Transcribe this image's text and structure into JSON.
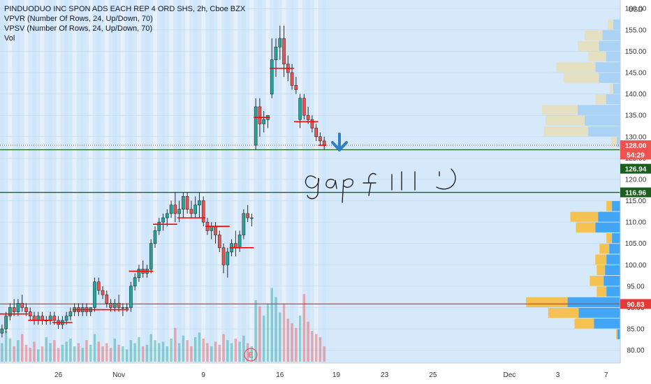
{
  "legend": {
    "line1": "PINDUODUO INC SPON ADS EACH REP 4 ORD SHS, 2h, Cboe BZX",
    "line2": "VPVR (Number Of Rows, 24, Up/Down, 70)",
    "line3": "VPSV (Number Of Rows, 24, Up/Down, 70)",
    "line4": "Vol"
  },
  "annotation": {
    "handwriting": "gap fill :)",
    "earnings_marker": "E"
  },
  "colors": {
    "background": "#d6e9fb",
    "up": "#26a69a",
    "down": "#ef5350",
    "profile_up": "#42a5f5",
    "profile_down": "#f5c150",
    "profile_up_faded": "#a9d2f5",
    "profile_down_faded": "#e6e0c2",
    "session_line": "#ff0000",
    "arrow": "#2f7fc3",
    "level_line": "#1b5e20",
    "poc_line": "#e53935"
  },
  "chart_data": {
    "type": "candlestick",
    "title": "PINDUODUO INC SPON ADS EACH REP 4 ORD SHS, 2h, Cboe BZX",
    "currency": "USD",
    "ylim": [
      77,
      162
    ],
    "y_ticks": [
      80,
      85,
      90,
      95,
      100,
      105,
      110,
      115,
      120,
      125,
      130,
      135,
      140,
      145,
      150,
      155,
      160
    ],
    "y_tick_labels": [
      "80.00",
      "85.00",
      "90.00",
      "95.00",
      "100.00",
      "105.00",
      "110.00",
      "115.00",
      "120.00",
      "125.00",
      "130.00",
      "135.00",
      "140.00",
      "145.00",
      "150.00",
      "155.00",
      "160.00"
    ],
    "x_ticks": [
      {
        "label": "26",
        "index": 14
      },
      {
        "label": "Nov",
        "index": 29
      },
      {
        "label": "9",
        "index": 50
      },
      {
        "label": "16",
        "index": 69
      },
      {
        "label": "19",
        "index": 83
      },
      {
        "label": "23",
        "index": 95
      },
      {
        "label": "25",
        "index": 107
      },
      {
        "label": "Dec",
        "index": 126
      },
      {
        "label": "3",
        "index": 138
      },
      {
        "label": "7",
        "index": 150
      }
    ],
    "bars_visible": 154,
    "price_badges": [
      {
        "value": "128.00",
        "price": 128.0,
        "color": "#ef5350"
      },
      {
        "value": "54:29",
        "price": 125.8,
        "color": "#ef5350"
      },
      {
        "value": "126.94",
        "price": 122.5,
        "color": "#1b5e20"
      },
      {
        "value": "116.96",
        "price": 116.96,
        "color": "#1b5e20"
      },
      {
        "value": "90.83",
        "price": 90.83,
        "color": "#e53935"
      }
    ],
    "horizontal_lines": [
      {
        "price": 126.94,
        "color": "#1b5e20"
      },
      {
        "price": 116.96,
        "color": "#1b5e20"
      },
      {
        "price": 90.83,
        "color": "#e53935"
      }
    ],
    "candles": [
      [
        84,
        86,
        83,
        85
      ],
      [
        85,
        89,
        84,
        88
      ],
      [
        88,
        91,
        87,
        90
      ],
      [
        90,
        92,
        88,
        89
      ],
      [
        89,
        92,
        88,
        91
      ],
      [
        91,
        93,
        89,
        90
      ],
      [
        90,
        91,
        88,
        89
      ],
      [
        89,
        90,
        87,
        88
      ],
      [
        88,
        89,
        86,
        87
      ],
      [
        87,
        89,
        86,
        88
      ],
      [
        88,
        89,
        86,
        87
      ],
      [
        87,
        88,
        86,
        87
      ],
      [
        87,
        89,
        86,
        88
      ],
      [
        88,
        89,
        86,
        87
      ],
      [
        87,
        88,
        85,
        86
      ],
      [
        86,
        88,
        85,
        87
      ],
      [
        87,
        89,
        86,
        88
      ],
      [
        88,
        90,
        87,
        89
      ],
      [
        89,
        91,
        88,
        90
      ],
      [
        90,
        91,
        88,
        89
      ],
      [
        89,
        91,
        88,
        90
      ],
      [
        90,
        91,
        88,
        89
      ],
      [
        89,
        90,
        88,
        90
      ],
      [
        90,
        97,
        89,
        96
      ],
      [
        96,
        97,
        93,
        94
      ],
      [
        94,
        95,
        92,
        93
      ],
      [
        93,
        94,
        90,
        91
      ],
      [
        91,
        92,
        89,
        90
      ],
      [
        90,
        92,
        89,
        91
      ],
      [
        91,
        93,
        89,
        90
      ],
      [
        90,
        91,
        88,
        90
      ],
      [
        90,
        91,
        89,
        90
      ],
      [
        90,
        96,
        89,
        95
      ],
      [
        95,
        98,
        94,
        97
      ],
      [
        97,
        100,
        96,
        99
      ],
      [
        99,
        101,
        97,
        98
      ],
      [
        98,
        100,
        97,
        99
      ],
      [
        99,
        106,
        98,
        105
      ],
      [
        105,
        109,
        104,
        108
      ],
      [
        108,
        111,
        107,
        110
      ],
      [
        110,
        112,
        108,
        111
      ],
      [
        111,
        113,
        109,
        112
      ],
      [
        112,
        115,
        111,
        114
      ],
      [
        114,
        117,
        110,
        112
      ],
      [
        112,
        115,
        110,
        113
      ],
      [
        113,
        117,
        111,
        116
      ],
      [
        116,
        117,
        112,
        113
      ],
      [
        113,
        115,
        111,
        112
      ],
      [
        112,
        116,
        111,
        114
      ],
      [
        114,
        117,
        111,
        115
      ],
      [
        115,
        116,
        109,
        110
      ],
      [
        110,
        111,
        107,
        108
      ],
      [
        108,
        110,
        106,
        109
      ],
      [
        109,
        110,
        105,
        107
      ],
      [
        107,
        108,
        103,
        104
      ],
      [
        104,
        105,
        98,
        100
      ],
      [
        100,
        104,
        97,
        103
      ],
      [
        103,
        106,
        102,
        105
      ],
      [
        105,
        108,
        102,
        104
      ],
      [
        104,
        108,
        103,
        107
      ],
      [
        107,
        113,
        106,
        112
      ],
      [
        112,
        114,
        110,
        111
      ],
      [
        111,
        112,
        109,
        111
      ],
      [
        128,
        139,
        127,
        137
      ],
      [
        137,
        139,
        130,
        133
      ],
      [
        133,
        136,
        131,
        134
      ],
      [
        134,
        135,
        132,
        135
      ],
      [
        140,
        153,
        139,
        148
      ],
      [
        148,
        153,
        144,
        151
      ],
      [
        151,
        156,
        148,
        153
      ],
      [
        153,
        156,
        144,
        147
      ],
      [
        147,
        149,
        143,
        145
      ],
      [
        145,
        147,
        141,
        142
      ],
      [
        142,
        144,
        140,
        141
      ],
      [
        134,
        140,
        132,
        139
      ],
      [
        139,
        140,
        134,
        135
      ],
      [
        135,
        137,
        133,
        134
      ],
      [
        134,
        135,
        131,
        132
      ],
      [
        132,
        133,
        129,
        130
      ],
      [
        130,
        131,
        128,
        129
      ],
      [
        129,
        130,
        127,
        128
      ]
    ],
    "volume": [
      12,
      20,
      15,
      10,
      14,
      18,
      11,
      9,
      13,
      8,
      10,
      16,
      12,
      14,
      9,
      11,
      13,
      15,
      10,
      12,
      9,
      14,
      11,
      18,
      13,
      10,
      12,
      9,
      15,
      11,
      10,
      8,
      14,
      12,
      16,
      10,
      11,
      18,
      14,
      12,
      13,
      10,
      15,
      22,
      12,
      17,
      14,
      10,
      16,
      19,
      15,
      12,
      10,
      13,
      11,
      18,
      14,
      12,
      15,
      13,
      17,
      12,
      10,
      40,
      36,
      30,
      38,
      48,
      42,
      32,
      38,
      28,
      25,
      22,
      30,
      44,
      26,
      20,
      18,
      16,
      10
    ],
    "volume_ylim": [
      0,
      50
    ],
    "session_vwap_segments": [
      {
        "start": 0,
        "end": 6,
        "price": 88.5
      },
      {
        "start": 7,
        "end": 12,
        "price": 87
      },
      {
        "start": 13,
        "end": 17,
        "price": 86.5
      },
      {
        "start": 18,
        "end": 24,
        "price": 89.5
      },
      {
        "start": 25,
        "end": 31,
        "price": 89.5
      },
      {
        "start": 32,
        "end": 37,
        "price": 98.5
      },
      {
        "start": 38,
        "end": 43,
        "price": 109.5
      },
      {
        "start": 44,
        "end": 50,
        "price": 111
      },
      {
        "start": 51,
        "end": 56,
        "price": 109
      },
      {
        "start": 57,
        "end": 62,
        "price": 104
      },
      {
        "start": 63,
        "end": 66,
        "price": 134.5
      },
      {
        "start": 67,
        "end": 72,
        "price": 146
      },
      {
        "start": 73,
        "end": 78,
        "price": 133.5
      },
      {
        "start": 79,
        "end": 80,
        "price": 128
      }
    ],
    "volume_profile_lower": [
      {
        "price_low": 80,
        "price_high": 82.5,
        "up": 0,
        "down": 0
      },
      {
        "price_low": 82.5,
        "price_high": 85,
        "up": 2,
        "down": 1
      },
      {
        "price_low": 85,
        "price_high": 87.5,
        "up": 19,
        "down": 14
      },
      {
        "price_low": 87.5,
        "price_high": 90,
        "up": 30,
        "down": 22
      },
      {
        "price_low": 90,
        "price_high": 92.5,
        "up": 38,
        "down": 30
      },
      {
        "price_low": 92.5,
        "price_high": 95,
        "up": 10,
        "down": 7
      },
      {
        "price_low": 95,
        "price_high": 97.5,
        "up": 12,
        "down": 10
      },
      {
        "price_low": 97.5,
        "price_high": 100,
        "up": 11,
        "down": 6
      },
      {
        "price_low": 100,
        "price_high": 102.5,
        "up": 10,
        "down": 8
      },
      {
        "price_low": 102.5,
        "price_high": 105,
        "up": 8,
        "down": 7
      },
      {
        "price_low": 105,
        "price_high": 107.5,
        "up": 6,
        "down": 4
      },
      {
        "price_low": 107.5,
        "price_high": 110,
        "up": 18,
        "down": 14
      },
      {
        "price_low": 110,
        "price_high": 112.5,
        "up": 16,
        "down": 20
      },
      {
        "price_low": 112.5,
        "price_high": 115,
        "up": 6,
        "down": 4
      }
    ],
    "volume_profile_upper": [
      {
        "price_low": 127.5,
        "price_high": 130,
        "up": 2,
        "down": 3
      },
      {
        "price_low": 130,
        "price_high": 132.5,
        "up": 18,
        "down": 25
      },
      {
        "price_low": 132.5,
        "price_high": 135,
        "up": 20,
        "down": 22
      },
      {
        "price_low": 135,
        "price_high": 137.5,
        "up": 24,
        "down": 20
      },
      {
        "price_low": 137.5,
        "price_high": 140,
        "up": 8,
        "down": 6
      },
      {
        "price_low": 140,
        "price_high": 142.5,
        "up": 4,
        "down": 2
      },
      {
        "price_low": 142.5,
        "price_high": 145,
        "up": 12,
        "down": 20
      },
      {
        "price_low": 145,
        "price_high": 147.5,
        "up": 14,
        "down": 22
      },
      {
        "price_low": 147.5,
        "price_high": 150,
        "up": 8,
        "down": 10
      },
      {
        "price_low": 150,
        "price_high": 152.5,
        "up": 12,
        "down": 12
      },
      {
        "price_low": 152.5,
        "price_high": 155,
        "up": 10,
        "down": 10
      },
      {
        "price_low": 155,
        "price_high": 157.5,
        "up": 4,
        "down": 3
      }
    ]
  }
}
